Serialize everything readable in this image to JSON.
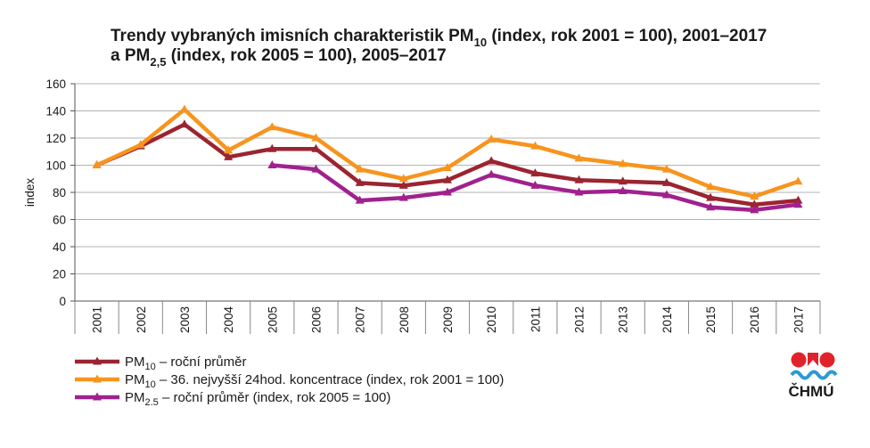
{
  "chart_data": {
    "type": "line",
    "title": {
      "line1": {
        "pre": "Trendy vybraných imisních charakteristik PM",
        "sub": "10",
        "post": " (index, rok 2001 = 100), 2001–2017"
      },
      "line2": {
        "pre": "a PM",
        "sub": "2,5",
        "post": " (index, rok 2005 = 100), 2005–2017"
      }
    },
    "ylabel": "index",
    "xlabel": "",
    "ylim": [
      0,
      160
    ],
    "yticks": [
      0,
      20,
      40,
      60,
      80,
      100,
      120,
      140,
      160
    ],
    "grid": true,
    "categories": [
      "2001",
      "2002",
      "2003",
      "2004",
      "2005",
      "2006",
      "2007",
      "2008",
      "2009",
      "2010",
      "2011",
      "2012",
      "2013",
      "2014",
      "2015",
      "2016",
      "2017"
    ],
    "series": [
      {
        "key": "pm10_mean",
        "legend": {
          "pre": "PM",
          "sub": "10",
          "post": " – roční průměr"
        },
        "color": "#9b2430",
        "values": [
          100,
          114,
          130,
          106,
          112,
          112,
          87,
          85,
          89,
          103,
          94,
          89,
          88,
          87,
          76,
          71,
          74
        ]
      },
      {
        "key": "pm10_36",
        "legend": {
          "pre": "PM",
          "sub": "10",
          "post": " – 36. nejvyšší 24hod. koncentrace  (index, rok  2001 = 100)"
        },
        "color": "#f7941d",
        "values": [
          100,
          115,
          141,
          111,
          128,
          120,
          97,
          90,
          98,
          119,
          114,
          105,
          101,
          97,
          84,
          77,
          88
        ]
      },
      {
        "key": "pm25_mean",
        "legend": {
          "pre": "PM",
          "sub": "2.5",
          "post": " – roční průměr (index, rok 2005 = 100)"
        },
        "color": "#a0218e",
        "values": [
          null,
          null,
          null,
          null,
          100,
          97,
          74,
          76,
          80,
          93,
          85,
          80,
          81,
          78,
          69,
          67,
          71
        ]
      }
    ],
    "legend_position": "bottom-left"
  },
  "logo": {
    "text": "ČHMÚ",
    "name": "chmu-logo"
  }
}
